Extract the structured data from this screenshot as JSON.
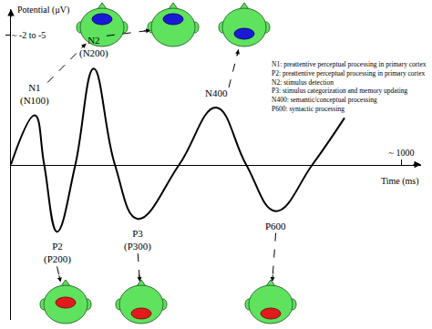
{
  "chart_data": {
    "type": "line",
    "x_label": "Time (ms)",
    "y_label": "Potential (μV)",
    "x": [
      0,
      61,
      85,
      118,
      165,
      212,
      266,
      325,
      431,
      525,
      602,
      678,
      772,
      854
    ],
    "values": [
      0,
      -1.9,
      0,
      2.6,
      0,
      -3.7,
      0,
      2.1,
      0,
      -2.2,
      0,
      1.8,
      0,
      -1.8
    ],
    "point_labels": [
      null,
      [
        "N1",
        "(N100)"
      ],
      null,
      [
        "P2",
        "(P200)"
      ],
      null,
      [
        "N2",
        "(N200)"
      ],
      null,
      [
        "P3",
        "(P300)"
      ],
      null,
      [
        "N400"
      ],
      null,
      [
        "P600"
      ],
      null,
      null
    ],
    "color": "#000000",
    "xlim": [
      0,
      1050
    ],
    "xticks": [
      {
        "value": 1000,
        "label": "~ 1000"
      }
    ],
    "ylim": [
      6,
      -6
    ],
    "yticks": [
      {
        "value": -5,
        "label": "~ -2 to -5"
      }
    ],
    "grid": false,
    "notes": [
      "N1: preattentive perceptual processing in primary cortex",
      "P2: preattentive perceptual processing in primary cortex",
      "N2: stimulus detection",
      "P3: stimulus categorization and memory updating",
      "N400: semantic/conceptual processing",
      "P600: syntactic processing"
    ]
  }
}
